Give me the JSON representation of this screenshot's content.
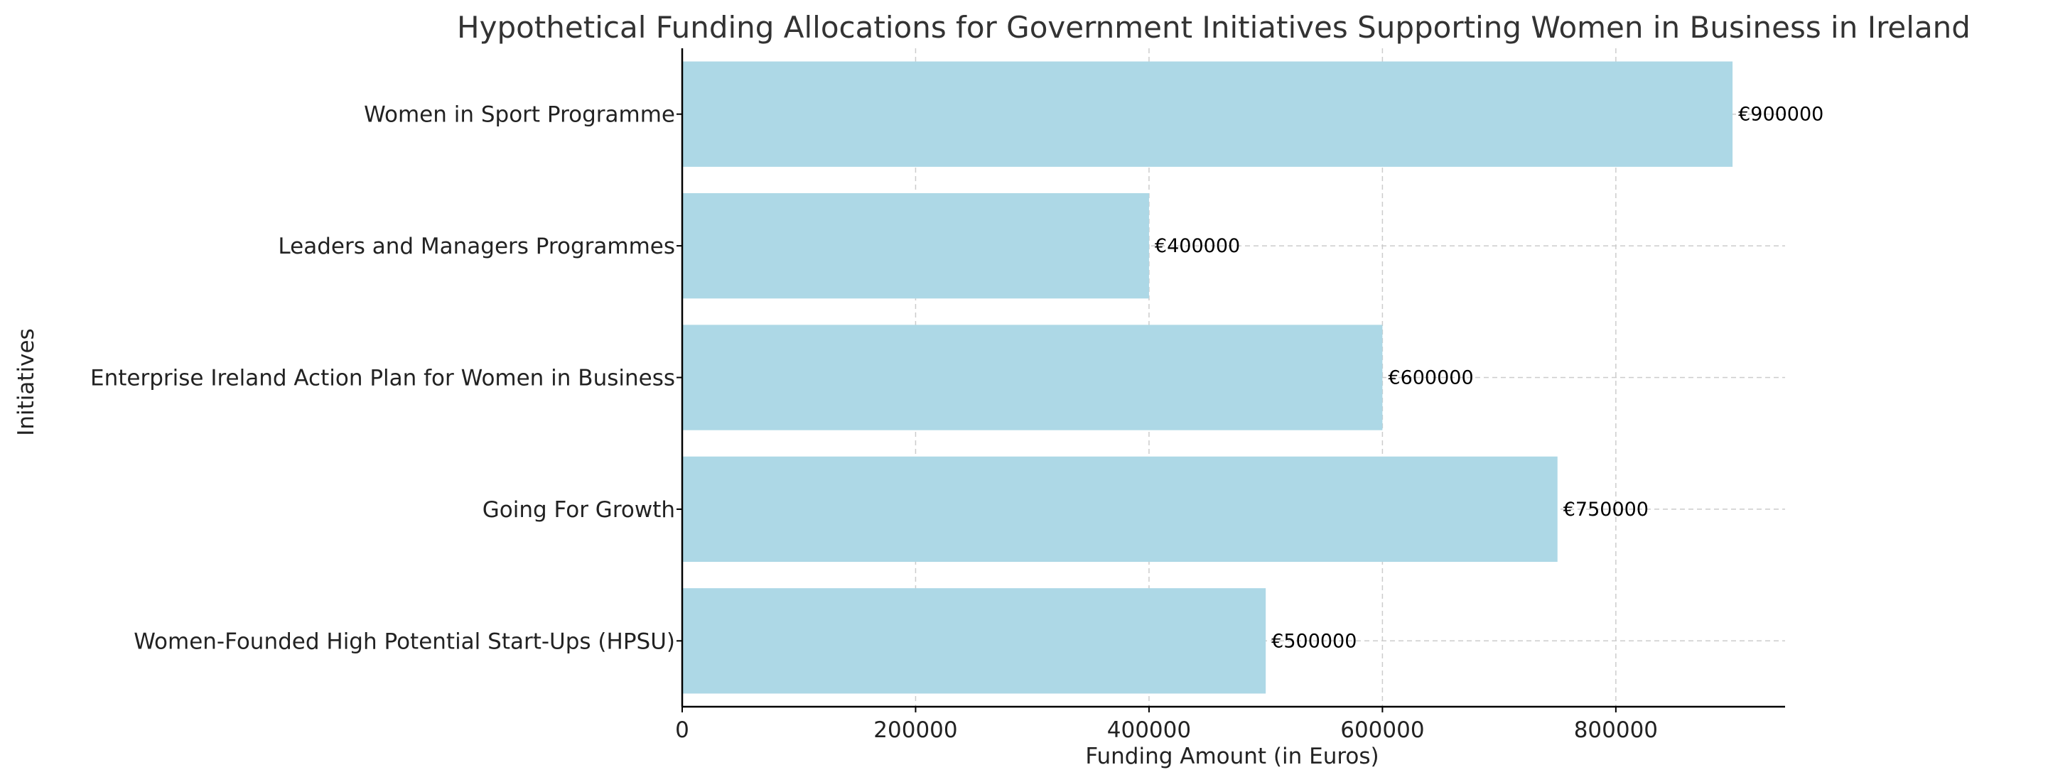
{
  "chart_data": {
    "type": "bar",
    "orientation": "horizontal",
    "title": "Hypothetical Funding Allocations for Government Initiatives Supporting Women in Business in Ireland",
    "xlabel": "Funding Amount (in Euros)",
    "ylabel": "Initiatives",
    "categories": [
      "Women-Founded High Potential Start-Ups (HPSU)",
      "Going For Growth",
      "Enterprise Ireland Action Plan for Women in Business",
      "Leaders and Managers Programmes",
      "Women in Sport Programme"
    ],
    "values": [
      500000,
      750000,
      600000,
      400000,
      900000
    ],
    "value_labels": [
      "€500000",
      "€750000",
      "€600000",
      "€400000",
      "€900000"
    ],
    "xlim": [
      0,
      945000
    ],
    "xticks": [
      0,
      200000,
      400000,
      600000,
      800000
    ],
    "xtick_labels": [
      "0",
      "200000",
      "400000",
      "600000",
      "800000"
    ],
    "grid": true,
    "colors": {
      "bar": "#add8e6",
      "grid": "#cccccc",
      "axis": "#000000",
      "text": "#333333"
    }
  }
}
